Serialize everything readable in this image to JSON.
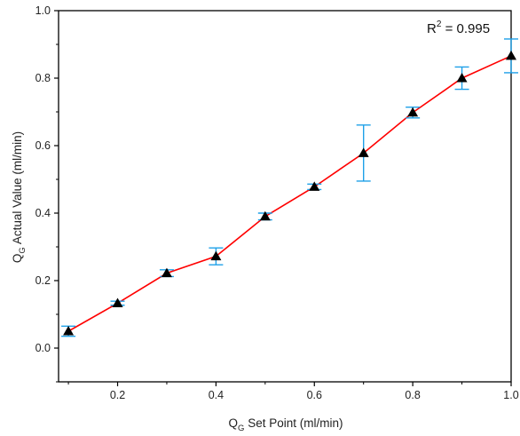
{
  "chart_data": {
    "type": "line",
    "xlabel": {
      "main": "Q",
      "sub": "G",
      "rest": " Set Point (ml/min)"
    },
    "ylabel": {
      "main": "Q",
      "sub": "G",
      "rest": " Actual Value (ml/min)"
    },
    "xlim": [
      0.08,
      1.0
    ],
    "ylim": [
      -0.1,
      1.0
    ],
    "xticks": [
      "0.2",
      "0.4",
      "0.6",
      "0.8",
      "1.0"
    ],
    "xtick_values": [
      0.2,
      0.4,
      0.6,
      0.8,
      1.0
    ],
    "yticks": [
      "0.0",
      "0.2",
      "0.4",
      "0.6",
      "0.8",
      "1.0"
    ],
    "ytick_values": [
      0.0,
      0.2,
      0.4,
      0.6,
      0.8,
      1.0
    ],
    "annotation": {
      "prefix": "R",
      "sup": "2",
      "suffix": " = 0.995"
    },
    "grid": false,
    "series": [
      {
        "x": [
          0.1,
          0.2,
          0.3,
          0.4,
          0.5,
          0.6,
          0.7,
          0.8,
          0.9,
          1.0
        ],
        "y": [
          0.05,
          0.133,
          0.222,
          0.272,
          0.39,
          0.478,
          0.578,
          0.698,
          0.8,
          0.866
        ],
        "err": [
          0.015,
          0.006,
          0.01,
          0.025,
          0.01,
          0.008,
          0.083,
          0.016,
          0.033,
          0.05
        ],
        "line_color": "#ff0000",
        "marker_color": "#000000",
        "error_color": "#1ea0e8",
        "marker": "triangle-up"
      }
    ]
  }
}
